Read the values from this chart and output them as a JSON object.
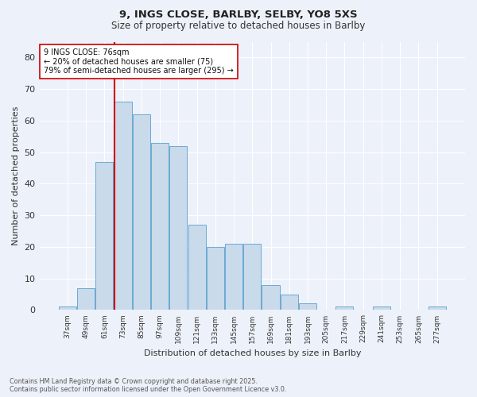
{
  "title1": "9, INGS CLOSE, BARLBY, SELBY, YO8 5XS",
  "title2": "Size of property relative to detached houses in Barlby",
  "xlabel": "Distribution of detached houses by size in Barlby",
  "ylabel": "Number of detached properties",
  "categories": [
    "37sqm",
    "49sqm",
    "61sqm",
    "73sqm",
    "85sqm",
    "97sqm",
    "109sqm",
    "121sqm",
    "133sqm",
    "145sqm",
    "157sqm",
    "169sqm",
    "181sqm",
    "193sqm",
    "205sqm",
    "217sqm",
    "229sqm",
    "241sqm",
    "253sqm",
    "265sqm",
    "277sqm"
  ],
  "values": [
    1,
    7,
    47,
    66,
    62,
    53,
    52,
    27,
    20,
    21,
    21,
    8,
    5,
    2,
    0,
    1,
    0,
    1,
    0,
    0,
    1
  ],
  "bar_color": "#c9daea",
  "bar_edge_color": "#6aaad4",
  "ylim": [
    0,
    85
  ],
  "yticks": [
    0,
    10,
    20,
    30,
    40,
    50,
    60,
    70,
    80
  ],
  "property_line_color": "#cc0000",
  "annotation_text": "9 INGS CLOSE: 76sqm\n← 20% of detached houses are smaller (75)\n79% of semi-detached houses are larger (295) →",
  "annotation_box_color": "#ffffff",
  "annotation_box_edge": "#cc0000",
  "footer_text": "Contains HM Land Registry data © Crown copyright and database right 2025.\nContains public sector information licensed under the Open Government Licence v3.0.",
  "background_color": "#edf1f9",
  "grid_color": "#ffffff"
}
